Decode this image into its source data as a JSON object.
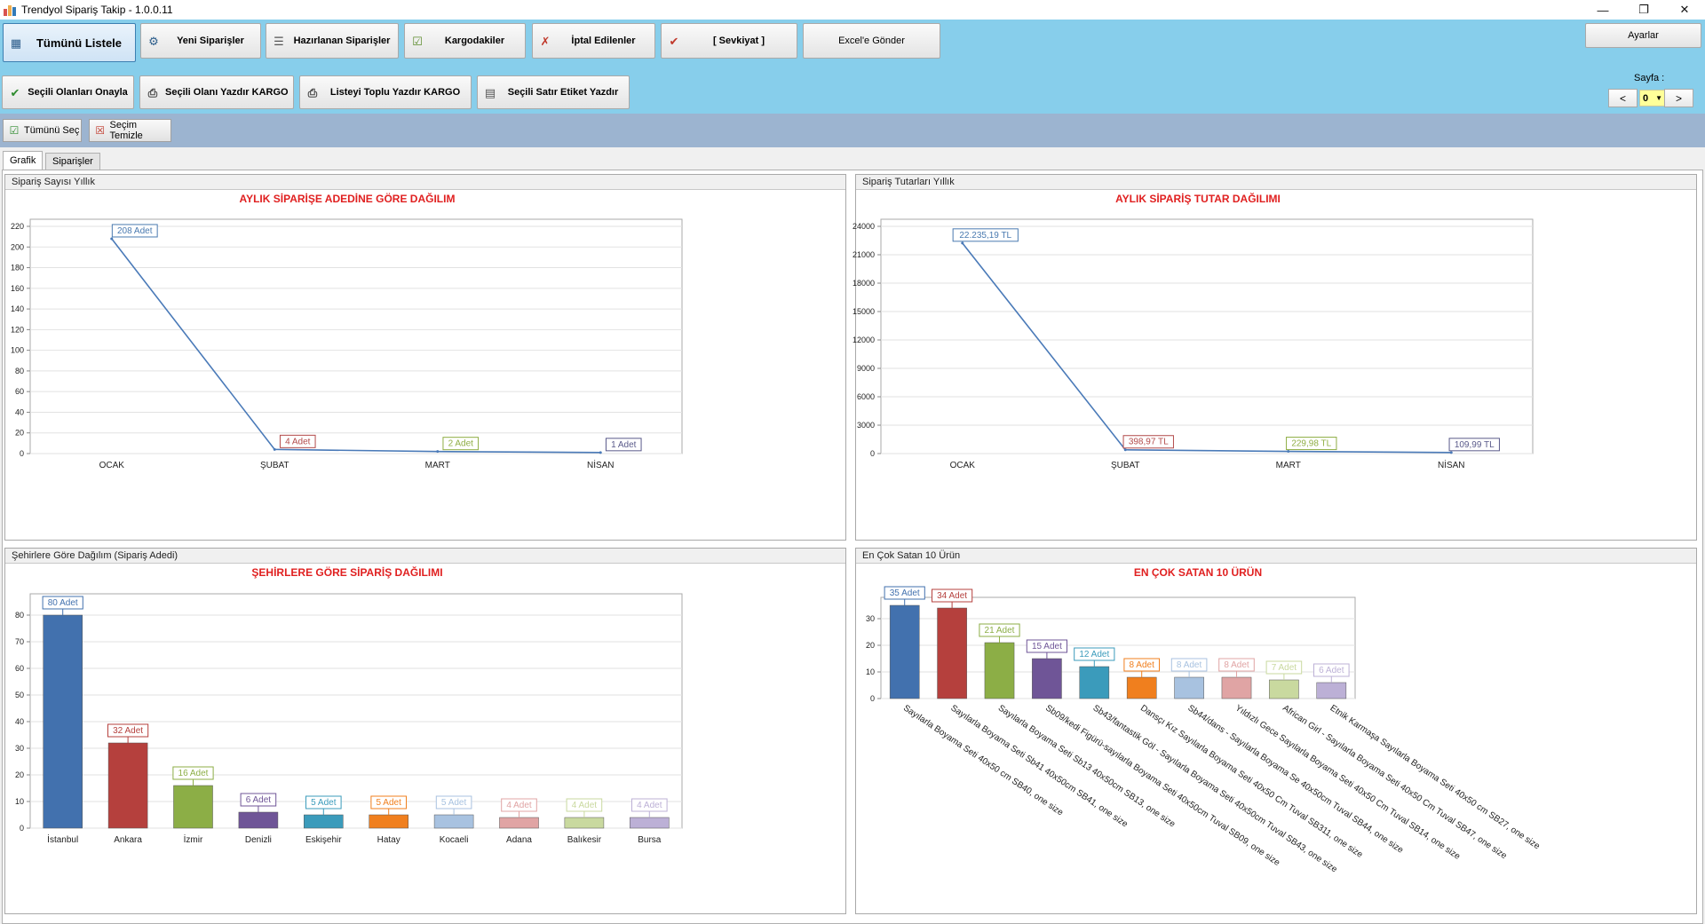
{
  "window": {
    "title": "Trendyol Sipariş Takip - 1.0.0.11",
    "controls": [
      "—",
      "❐",
      "✕"
    ]
  },
  "toolbar": {
    "row1": [
      {
        "label": "Tümünü Listele",
        "icon": "list-icon"
      },
      {
        "label": "Yeni Siparişler",
        "icon": "new-orders-icon"
      },
      {
        "label": "Hazırlanan Siparişler",
        "icon": "prepared-orders-icon"
      },
      {
        "label": "Kargodakiler",
        "icon": "cargo-icon"
      },
      {
        "label": "İptal Edilenler",
        "icon": "cancelled-icon"
      },
      {
        "label": "[ Sevkiyat ]",
        "icon": "shipment-icon"
      },
      {
        "label": "Excel'e Gönder",
        "icon": ""
      }
    ],
    "row2": [
      {
        "label": "Seçili Olanları Onayla",
        "icon": "checkmark-icon"
      },
      {
        "label": "Seçili Olanı Yazdır KARGO",
        "icon": "printer-icon"
      },
      {
        "label": "Listeyi Toplu Yazdır KARGO",
        "icon": "printer-icon"
      },
      {
        "label": "Seçili Satır Etiket Yazdır",
        "icon": "label-print-icon"
      }
    ],
    "settings_label": "Ayarlar",
    "page_label": "Sayfa :",
    "page_value": "0",
    "prev": "<",
    "next": ">"
  },
  "subbar": {
    "select_all": "Tümünü Seç",
    "clear_selection": "Seçim Temizle"
  },
  "tabs": [
    "Grafik",
    "Siparişler"
  ],
  "chart_data": [
    {
      "panel_title": "Sipariş Sayısı Yıllık",
      "title": "AYLIK SİPARİŞE ADEDİNE GÖRE DAĞILIM",
      "type": "line",
      "categories": [
        "OCAK",
        "ŞUBAT",
        "MART",
        "NİSAN"
      ],
      "values": [
        208,
        4,
        2,
        1
      ],
      "labels": [
        "208 Adet",
        "4 Adet",
        "2 Adet",
        "1 Adet"
      ],
      "label_colors": [
        "#4a7ab0",
        "#b24a4a",
        "#8fae45",
        "#5a5a8a"
      ],
      "yticks": [
        0,
        20,
        40,
        60,
        80,
        100,
        120,
        140,
        160,
        180,
        200,
        220
      ],
      "ylim": [
        0,
        220
      ],
      "line_color": "#4a7ab8",
      "grid": true
    },
    {
      "panel_title": "Sipariş Tutarları Yıllık",
      "title": "AYLIK SİPARİŞ TUTAR DAĞILIMI",
      "type": "line",
      "categories": [
        "OCAK",
        "ŞUBAT",
        "MART",
        "NİSAN"
      ],
      "values": [
        22235.19,
        398.97,
        229.98,
        109.99
      ],
      "labels": [
        "22.235,19 TL",
        "398,97 TL",
        "229,98 TL",
        "109,99 TL"
      ],
      "label_colors": [
        "#4a7ab0",
        "#b24a4a",
        "#8fae45",
        "#5a5a8a"
      ],
      "yticks": [
        0,
        3000,
        6000,
        9000,
        12000,
        15000,
        18000,
        21000,
        24000
      ],
      "ylim": [
        0,
        24000
      ],
      "line_color": "#4a7ab8",
      "grid": true
    },
    {
      "panel_title": "Şehirlere Göre Dağılım (Sipariş Adedi)",
      "title": "ŞEHİRLERE GÖRE SİPARİŞ DAĞILIMI",
      "type": "bar",
      "categories": [
        "İstanbul",
        "Ankara",
        "İzmir",
        "Denizli",
        "Eskişehir",
        "Hatay",
        "Kocaeli",
        "Adana",
        "Balıkesir",
        "Bursa"
      ],
      "values": [
        80,
        32,
        16,
        6,
        5,
        5,
        5,
        4,
        4,
        4
      ],
      "labels": [
        "80 Adet",
        "32 Adet",
        "16 Adet",
        "6 Adet",
        "5 Adet",
        "5 Adet",
        "5 Adet",
        "4 Adet",
        "4 Adet",
        "4 Adet"
      ],
      "colors": [
        "#4271ae",
        "#b5403d",
        "#8cae46",
        "#6f5597",
        "#3b9bbb",
        "#f07f1e",
        "#a8c2e0",
        "#e0a4a4",
        "#c9d99f",
        "#bcb0d6"
      ],
      "yticks": [
        0,
        10,
        20,
        30,
        40,
        50,
        60,
        70,
        80
      ],
      "ylim": [
        0,
        88
      ],
      "grid": true
    },
    {
      "panel_title": "En Çok Satan 10 Ürün",
      "title": "EN ÇOK SATAN 10 ÜRÜN",
      "type": "bar",
      "categories": [
        "Sayılarla Boyama Seti 40x50 cm SB40, one size",
        "Sayılarla Boyama Seti Sb41 40x50cm SB41, one size",
        "Sayılarla Boyama Seti Sb13 40x50cm SB13, one size",
        "Sb09/kedi Figürü-sayılarla Boyama Seti 40x50cm Tuval SB09, one size",
        "Sb43/fantastik Göl - Sayılarla Boyama Seti 40x50cm Tuval SB43, one size",
        "Dansçı Kız Sayılarla Boyama Seti 40x50 Cm Tuval SB311, one size",
        "Sb44/dans - Sayılarla Boyama Se 40x50cm Tuval SB44, one size",
        "Yıldızlı Gece Sayılarla Boyama Seti 40x50 Cm Tuval SB14, one size",
        "African Girl - Sayılarla Boyama Seti 40x50 Cm Tuval SB47, one size",
        "Etnik Karmaşa Sayılarla Boyama Seti 40x50 cm SB27, one size"
      ],
      "values": [
        35,
        34,
        21,
        15,
        12,
        8,
        8,
        8,
        7,
        6
      ],
      "labels": [
        "35 Adet",
        "34 Adet",
        "21 Adet",
        "15 Adet",
        "12 Adet",
        "8 Adet",
        "8 Adet",
        "8 Adet",
        "7 Adet",
        "6 Adet"
      ],
      "colors": [
        "#4271ae",
        "#b5403d",
        "#8cae46",
        "#6f5597",
        "#3b9bbb",
        "#f07f1e",
        "#a8c2e0",
        "#e0a4a4",
        "#c9d99f",
        "#bcb0d6"
      ],
      "yticks": [
        0,
        10,
        20,
        30
      ],
      "ylim": [
        0,
        38
      ],
      "grid": true
    }
  ]
}
